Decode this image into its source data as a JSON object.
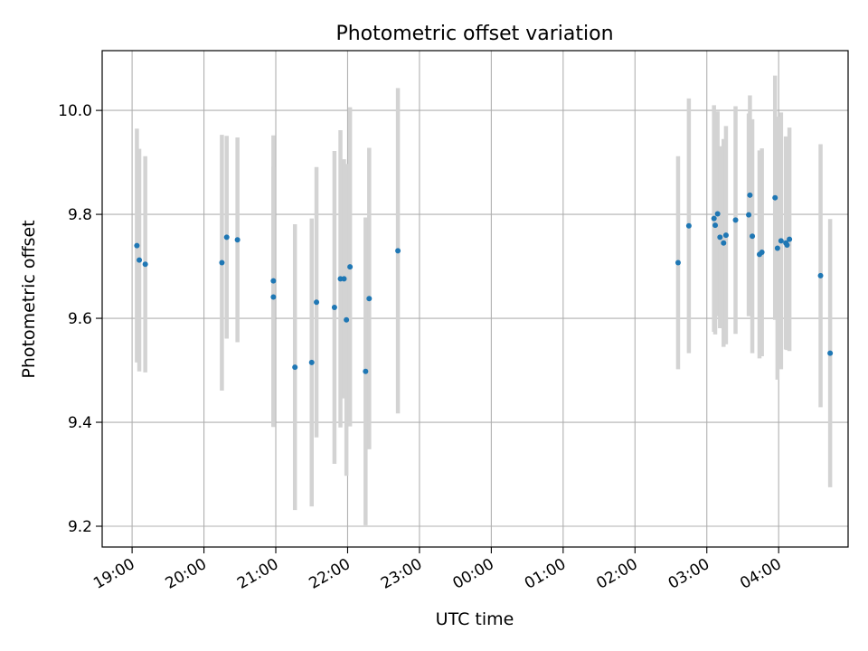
{
  "chart_data": {
    "type": "scatter",
    "title": "Photometric offset variation",
    "xlabel": "UTC time",
    "ylabel": "Photometric offset",
    "x_tick_labels": [
      "19:00",
      "20:00",
      "21:00",
      "22:00",
      "23:00",
      "00:00",
      "01:00",
      "02:00",
      "03:00",
      "04:00"
    ],
    "y_tick_labels": [
      "9.2",
      "9.4",
      "9.6",
      "9.8",
      "10.0"
    ],
    "y_ticks": [
      9.2,
      9.4,
      9.6,
      9.8,
      10.0
    ],
    "xlim": [
      "18:35",
      "04:58"
    ],
    "ylim": [
      9.16,
      10.115
    ],
    "grid": true,
    "colors": {
      "marker": "#1f77b4",
      "errorbar": "#d3d3d3",
      "grid": "#b0b0b0"
    },
    "series": [
      {
        "x": [
          "19:04",
          "19:06",
          "19:11",
          "20:15",
          "20:19",
          "20:28",
          "20:58",
          "20:58",
          "21:16",
          "21:30",
          "21:34",
          "21:49",
          "21:54",
          "21:57",
          "21:59",
          "22:02",
          "22:15",
          "22:18",
          "22:42",
          "02:36",
          "02:45",
          "03:06",
          "03:07",
          "03:09",
          "03:11",
          "03:14",
          "03:16",
          "03:24",
          "03:35",
          "03:36",
          "03:38",
          "03:44",
          "03:46",
          "03:57",
          "03:59",
          "04:02",
          "04:06",
          "04:07",
          "04:09",
          "04:35",
          "04:43"
        ],
        "y": [
          9.74,
          9.712,
          9.704,
          9.707,
          9.756,
          9.751,
          9.672,
          9.641,
          9.506,
          9.515,
          9.631,
          9.621,
          9.676,
          9.676,
          9.597,
          9.699,
          9.498,
          9.638,
          9.73,
          9.707,
          9.778,
          9.792,
          9.779,
          9.801,
          9.756,
          9.745,
          9.76,
          9.789,
          9.799,
          9.837,
          9.758,
          9.723,
          9.727,
          9.832,
          9.735,
          9.749,
          9.745,
          9.741,
          9.752,
          9.682,
          9.533
        ],
        "yerr": [
          0.225,
          0.214,
          0.208,
          0.246,
          0.195,
          0.197,
          0.28,
          0.25,
          0.275,
          0.277,
          0.26,
          0.301,
          0.286,
          0.23,
          0.3,
          0.307,
          0.296,
          0.29,
          0.313,
          0.205,
          0.245,
          0.218,
          0.21,
          0.197,
          0.175,
          0.2,
          0.21,
          0.219,
          0.195,
          0.192,
          0.225,
          0.2,
          0.2,
          0.235,
          0.253,
          0.247,
          0.205,
          0.202,
          0.215,
          0.253,
          0.258
        ]
      }
    ]
  }
}
